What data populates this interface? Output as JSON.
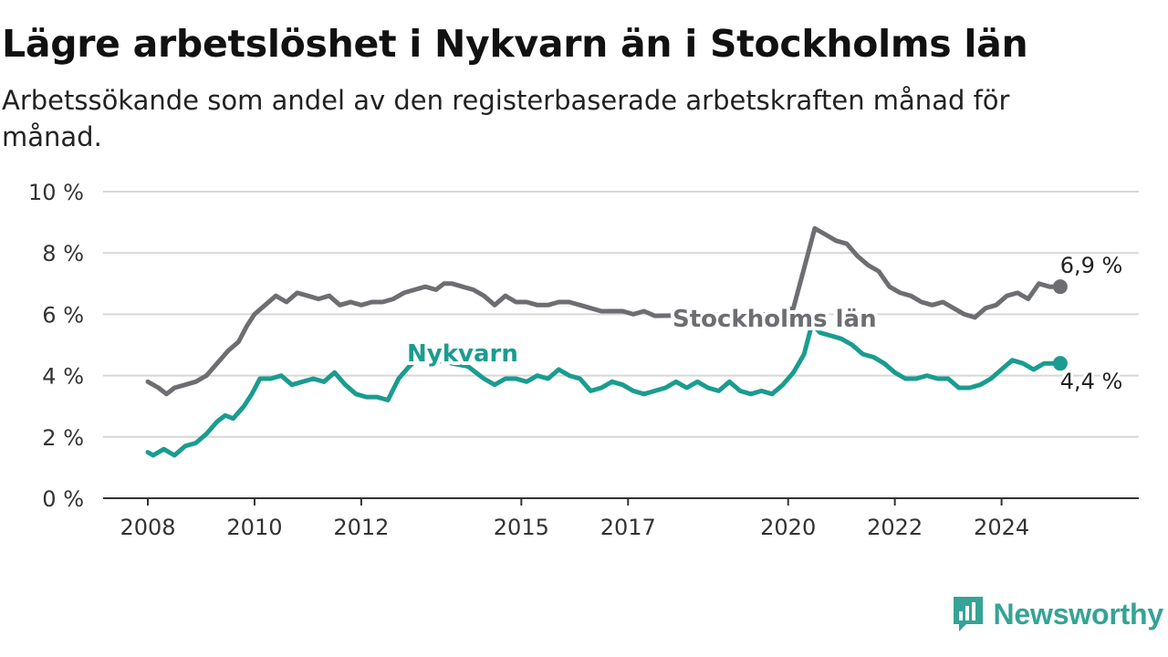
{
  "chart_data": {
    "type": "line",
    "title": "Lägre arbetslöshet i Nykvarn än i Stockholms län",
    "subtitle": "Arbetssökande som andel av den registerbaserade arbetskraften månad för månad.",
    "xlabel": "",
    "ylabel": "",
    "xlim": [
      2008.0,
      2025.7
    ],
    "ylim": [
      0,
      10
    ],
    "x_ticks": [
      {
        "value": 2008,
        "label": "2008"
      },
      {
        "value": 2010,
        "label": "2010"
      },
      {
        "value": 2012,
        "label": "2012"
      },
      {
        "value": 2015,
        "label": "2015"
      },
      {
        "value": 2017,
        "label": "2017"
      },
      {
        "value": 2020,
        "label": "2020"
      },
      {
        "value": 2022,
        "label": "2022"
      },
      {
        "value": 2024,
        "label": "2024"
      }
    ],
    "y_ticks": [
      {
        "value": 0,
        "label": "0 %"
      },
      {
        "value": 2,
        "label": "2 %"
      },
      {
        "value": 4,
        "label": "4 %"
      },
      {
        "value": 6,
        "label": "6 %"
      },
      {
        "value": 8,
        "label": "8 %"
      },
      {
        "value": 10,
        "label": "10 %"
      }
    ],
    "grid": true,
    "series": [
      {
        "name": "Stockholms län",
        "color": "#6d6e71",
        "end_label": "6,9 %",
        "points": [
          [
            2008.0,
            3.8
          ],
          [
            2008.2,
            3.6
          ],
          [
            2008.35,
            3.4
          ],
          [
            2008.5,
            3.6
          ],
          [
            2008.7,
            3.7
          ],
          [
            2008.9,
            3.8
          ],
          [
            2009.1,
            4.0
          ],
          [
            2009.3,
            4.4
          ],
          [
            2009.5,
            4.8
          ],
          [
            2009.7,
            5.1
          ],
          [
            2009.85,
            5.6
          ],
          [
            2010.0,
            6.0
          ],
          [
            2010.2,
            6.3
          ],
          [
            2010.4,
            6.6
          ],
          [
            2010.6,
            6.4
          ],
          [
            2010.8,
            6.7
          ],
          [
            2011.0,
            6.6
          ],
          [
            2011.2,
            6.5
          ],
          [
            2011.4,
            6.6
          ],
          [
            2011.6,
            6.3
          ],
          [
            2011.8,
            6.4
          ],
          [
            2012.0,
            6.3
          ],
          [
            2012.2,
            6.4
          ],
          [
            2012.4,
            6.4
          ],
          [
            2012.6,
            6.5
          ],
          [
            2012.8,
            6.7
          ],
          [
            2013.0,
            6.8
          ],
          [
            2013.2,
            6.9
          ],
          [
            2013.4,
            6.8
          ],
          [
            2013.55,
            7.0
          ],
          [
            2013.7,
            7.0
          ],
          [
            2013.9,
            6.9
          ],
          [
            2014.1,
            6.8
          ],
          [
            2014.3,
            6.6
          ],
          [
            2014.5,
            6.3
          ],
          [
            2014.7,
            6.6
          ],
          [
            2014.9,
            6.4
          ],
          [
            2015.1,
            6.4
          ],
          [
            2015.3,
            6.3
          ],
          [
            2015.5,
            6.3
          ],
          [
            2015.7,
            6.4
          ],
          [
            2015.9,
            6.4
          ],
          [
            2016.1,
            6.3
          ],
          [
            2016.3,
            6.2
          ],
          [
            2016.5,
            6.1
          ],
          [
            2016.7,
            6.1
          ],
          [
            2016.9,
            6.1
          ],
          [
            2017.1,
            6.0
          ],
          [
            2017.3,
            6.1
          ],
          [
            2017.5,
            5.95
          ],
          [
            2019.8,
            6.0
          ],
          [
            2020.1,
            6.2
          ],
          [
            2020.3,
            7.5
          ],
          [
            2020.5,
            8.8
          ],
          [
            2020.7,
            8.6
          ],
          [
            2020.9,
            8.4
          ],
          [
            2021.1,
            8.3
          ],
          [
            2021.3,
            7.9
          ],
          [
            2021.5,
            7.6
          ],
          [
            2021.7,
            7.4
          ],
          [
            2021.9,
            6.9
          ],
          [
            2022.1,
            6.7
          ],
          [
            2022.3,
            6.6
          ],
          [
            2022.5,
            6.4
          ],
          [
            2022.7,
            6.3
          ],
          [
            2022.9,
            6.4
          ],
          [
            2023.1,
            6.2
          ],
          [
            2023.3,
            6.0
          ],
          [
            2023.5,
            5.9
          ],
          [
            2023.7,
            6.2
          ],
          [
            2023.9,
            6.3
          ],
          [
            2024.1,
            6.6
          ],
          [
            2024.3,
            6.7
          ],
          [
            2024.5,
            6.5
          ],
          [
            2024.7,
            7.0
          ],
          [
            2024.9,
            6.9
          ],
          [
            2025.1,
            6.9
          ]
        ]
      },
      {
        "name": "Nykvarn",
        "color": "#1a9c8f",
        "end_label": "4,4 %",
        "points": [
          [
            2008.0,
            1.5
          ],
          [
            2008.1,
            1.4
          ],
          [
            2008.3,
            1.6
          ],
          [
            2008.5,
            1.4
          ],
          [
            2008.7,
            1.7
          ],
          [
            2008.9,
            1.8
          ],
          [
            2009.1,
            2.1
          ],
          [
            2009.3,
            2.5
          ],
          [
            2009.45,
            2.7
          ],
          [
            2009.6,
            2.6
          ],
          [
            2009.8,
            3.0
          ],
          [
            2009.95,
            3.4
          ],
          [
            2010.1,
            3.9
          ],
          [
            2010.3,
            3.9
          ],
          [
            2010.5,
            4.0
          ],
          [
            2010.7,
            3.7
          ],
          [
            2010.9,
            3.8
          ],
          [
            2011.1,
            3.9
          ],
          [
            2011.3,
            3.8
          ],
          [
            2011.5,
            4.1
          ],
          [
            2011.7,
            3.7
          ],
          [
            2011.9,
            3.4
          ],
          [
            2012.1,
            3.3
          ],
          [
            2012.3,
            3.3
          ],
          [
            2012.5,
            3.2
          ],
          [
            2012.7,
            3.9
          ],
          [
            2012.9,
            4.3
          ],
          [
            2013.1,
            4.6
          ],
          [
            2014.0,
            4.3
          ],
          [
            2014.3,
            3.9
          ],
          [
            2014.5,
            3.7
          ],
          [
            2014.7,
            3.9
          ],
          [
            2014.9,
            3.9
          ],
          [
            2015.1,
            3.8
          ],
          [
            2015.3,
            4.0
          ],
          [
            2015.5,
            3.9
          ],
          [
            2015.7,
            4.2
          ],
          [
            2015.9,
            4.0
          ],
          [
            2016.1,
            3.9
          ],
          [
            2016.3,
            3.5
          ],
          [
            2016.5,
            3.6
          ],
          [
            2016.7,
            3.8
          ],
          [
            2016.9,
            3.7
          ],
          [
            2017.1,
            3.5
          ],
          [
            2017.3,
            3.4
          ],
          [
            2017.5,
            3.5
          ],
          [
            2017.7,
            3.6
          ],
          [
            2017.9,
            3.8
          ],
          [
            2018.1,
            3.6
          ],
          [
            2018.3,
            3.8
          ],
          [
            2018.5,
            3.6
          ],
          [
            2018.7,
            3.5
          ],
          [
            2018.9,
            3.8
          ],
          [
            2019.1,
            3.5
          ],
          [
            2019.3,
            3.4
          ],
          [
            2019.5,
            3.5
          ],
          [
            2019.7,
            3.4
          ],
          [
            2019.9,
            3.7
          ],
          [
            2020.1,
            4.1
          ],
          [
            2020.3,
            4.7
          ],
          [
            2020.45,
            5.7
          ],
          [
            2020.6,
            5.4
          ],
          [
            2020.8,
            5.3
          ],
          [
            2021.0,
            5.2
          ],
          [
            2021.2,
            5.0
          ],
          [
            2021.4,
            4.7
          ],
          [
            2021.6,
            4.6
          ],
          [
            2021.8,
            4.4
          ],
          [
            2022.0,
            4.1
          ],
          [
            2022.2,
            3.9
          ],
          [
            2022.4,
            3.9
          ],
          [
            2022.6,
            4.0
          ],
          [
            2022.8,
            3.9
          ],
          [
            2023.0,
            3.9
          ],
          [
            2023.2,
            3.6
          ],
          [
            2023.4,
            3.6
          ],
          [
            2023.6,
            3.7
          ],
          [
            2023.8,
            3.9
          ],
          [
            2024.0,
            4.2
          ],
          [
            2024.2,
            4.5
          ],
          [
            2024.4,
            4.4
          ],
          [
            2024.6,
            4.2
          ],
          [
            2024.8,
            4.4
          ],
          [
            2025.0,
            4.4
          ],
          [
            2025.1,
            4.4
          ]
        ]
      }
    ]
  },
  "brand": {
    "name": "Newsworthy",
    "icon": "bar-chart-badge-icon"
  }
}
